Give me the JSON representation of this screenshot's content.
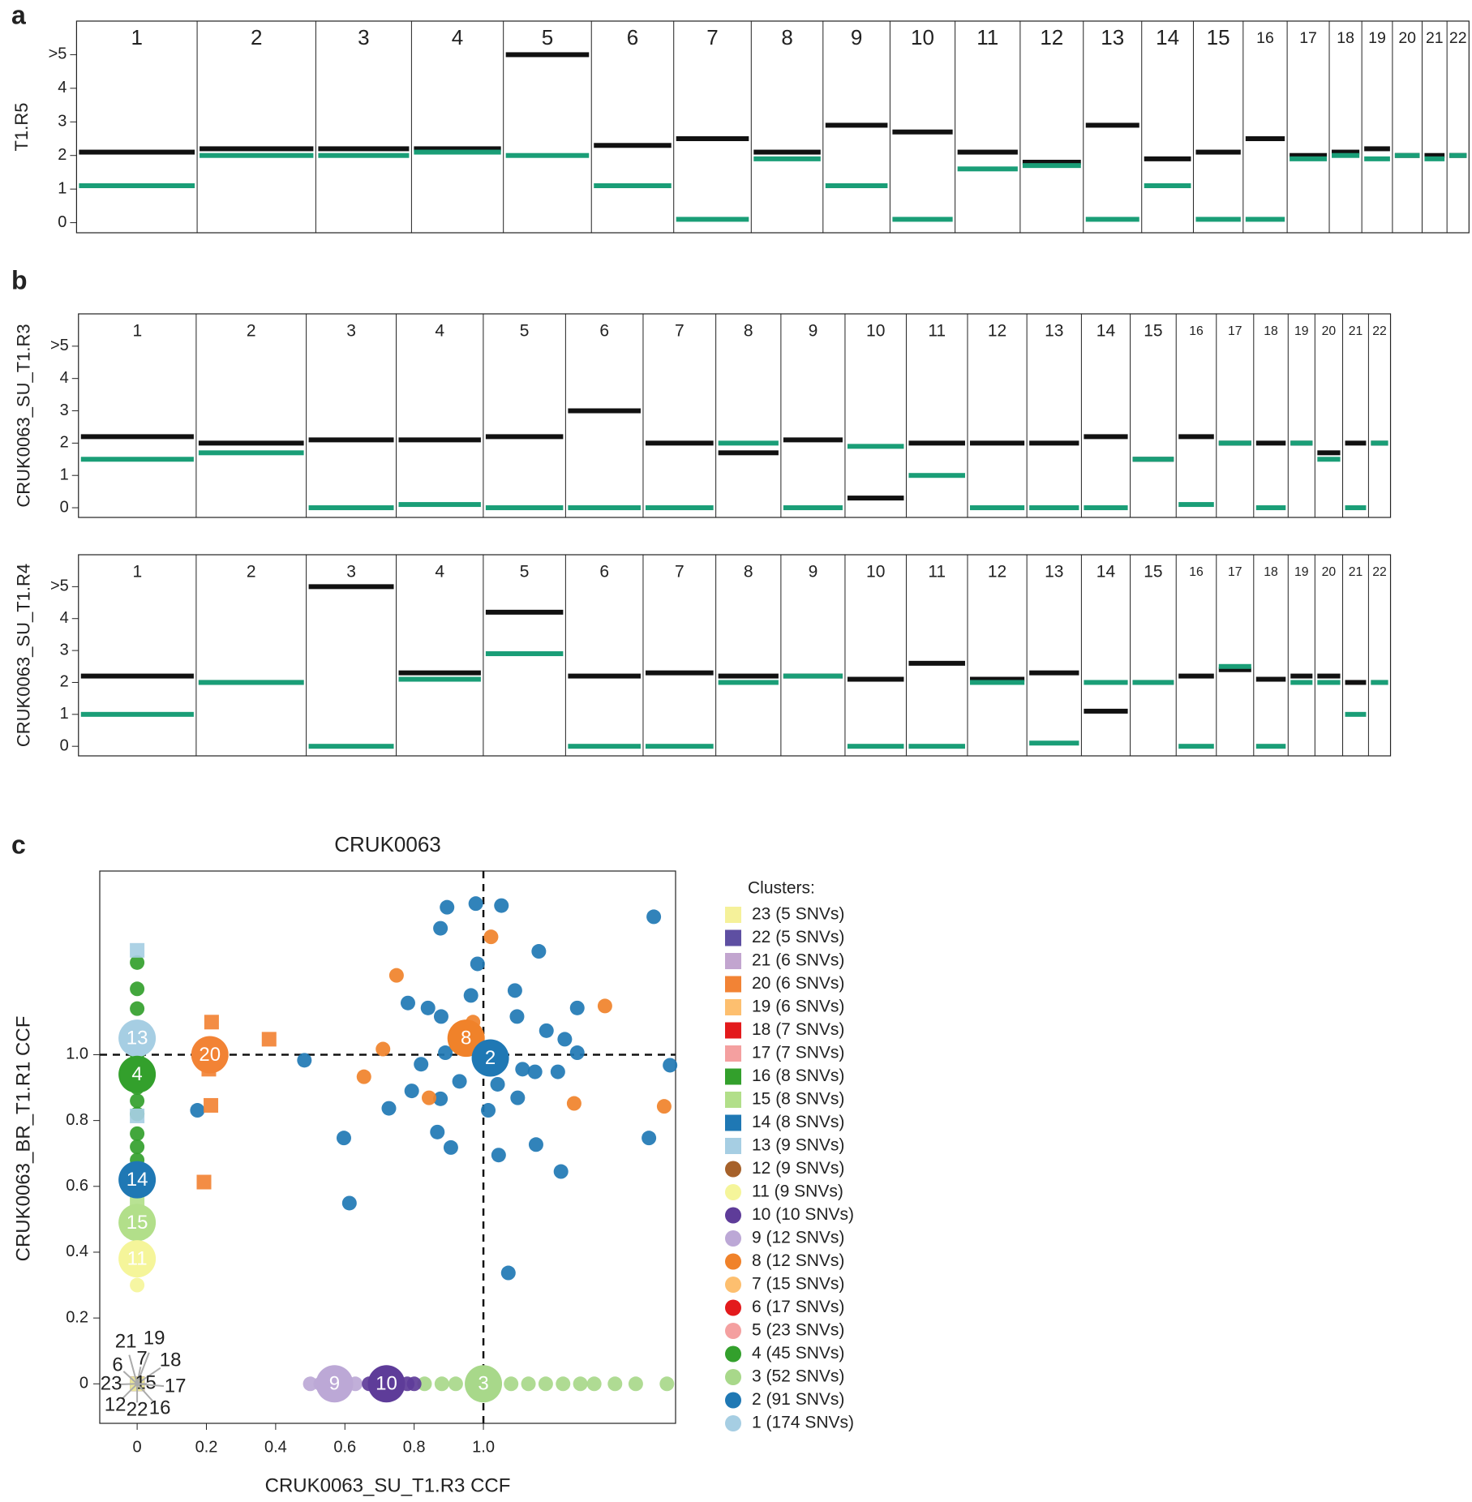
{
  "panel_labels": [
    "a",
    "b",
    "c"
  ],
  "chart_data": [
    {
      "type": "copynumber",
      "ylabel": "T1.R5",
      "categories": [
        "1",
        "2",
        "3",
        "4",
        "5",
        "6",
        "7",
        "8",
        "9",
        "10",
        "11",
        "12",
        "13",
        "14",
        "15",
        "16",
        "17",
        "18",
        "19",
        "20",
        "21",
        "22"
      ],
      "ylim": [
        -0.3,
        6.0
      ],
      "yticks": [
        0,
        1,
        2,
        3,
        4,
        {
          "value": 5,
          "label": ">5"
        }
      ],
      "series": [
        {
          "color": "#111111",
          "values": [
            2.1,
            2.2,
            2.2,
            2.2,
            5.0,
            2.3,
            2.5,
            2.1,
            2.9,
            2.7,
            2.1,
            1.8,
            2.9,
            1.9,
            2.1,
            2.5,
            2.0,
            2.1,
            2.2,
            2.0,
            2.0,
            2.0
          ]
        },
        {
          "color": "#1a9e77",
          "values": [
            1.1,
            2.0,
            2.0,
            2.1,
            2.0,
            1.1,
            0.1,
            1.9,
            1.1,
            0.1,
            1.6,
            1.7,
            0.1,
            1.1,
            0.1,
            0.1,
            1.9,
            2.0,
            1.9,
            2.0,
            1.9,
            2.0
          ]
        }
      ]
    },
    {
      "type": "copynumber",
      "ylabel": "CRUK0063_SU_T1.R3",
      "categories": [
        "1",
        "2",
        "3",
        "4",
        "5",
        "6",
        "7",
        "8",
        "9",
        "10",
        "11",
        "12",
        "13",
        "14",
        "15",
        "16",
        "17",
        "18",
        "19",
        "20",
        "21",
        "22"
      ],
      "ylim": [
        -0.3,
        6.0
      ],
      "yticks": [
        0,
        1,
        2,
        3,
        4,
        {
          "value": 5,
          "label": ">5"
        }
      ],
      "series": [
        {
          "color": "#111111",
          "values": [
            2.2,
            2.0,
            2.1,
            2.1,
            2.2,
            3.0,
            2.0,
            1.7,
            2.1,
            0.3,
            2.0,
            2.0,
            2.0,
            2.2,
            1.5,
            2.2,
            2.0,
            2.0,
            2.0,
            1.7,
            2.0,
            2.0
          ]
        },
        {
          "color": "#1a9e77",
          "values": [
            1.5,
            1.7,
            0.0,
            0.1,
            0.0,
            0.0,
            0.0,
            2.0,
            0.0,
            1.9,
            1.0,
            0.0,
            0.0,
            0.0,
            1.5,
            0.1,
            2.0,
            0.0,
            2.0,
            1.5,
            0.0,
            2.0
          ]
        }
      ]
    },
    {
      "type": "copynumber",
      "ylabel": "CRUK0063_SU_T1.R4",
      "categories": [
        "1",
        "2",
        "3",
        "4",
        "5",
        "6",
        "7",
        "8",
        "9",
        "10",
        "11",
        "12",
        "13",
        "14",
        "15",
        "16",
        "17",
        "18",
        "19",
        "20",
        "21",
        "22"
      ],
      "ylim": [
        -0.3,
        6.0
      ],
      "yticks": [
        0,
        1,
        2,
        3,
        4,
        {
          "value": 5,
          "label": ">5"
        }
      ],
      "series": [
        {
          "color": "#111111",
          "values": [
            2.2,
            2.0,
            5.0,
            2.3,
            4.2,
            2.2,
            2.3,
            2.2,
            2.2,
            2.1,
            2.6,
            2.1,
            2.3,
            1.1,
            2.0,
            2.2,
            2.4,
            2.1,
            2.2,
            2.2,
            2.0,
            2.0
          ]
        },
        {
          "color": "#1a9e77",
          "values": [
            1.0,
            2.0,
            0.0,
            2.1,
            2.9,
            0.0,
            0.0,
            2.0,
            2.2,
            0.0,
            0.0,
            2.0,
            0.1,
            2.0,
            2.0,
            0.0,
            2.5,
            0.0,
            2.0,
            2.0,
            1.0,
            2.0
          ]
        }
      ]
    },
    {
      "type": "scatter",
      "title": "CRUK0063",
      "xlabel": "CRUK0063_SU_T1.R3 CCF",
      "ylabel": "CRUK0063_BR_T1.R1 CCF",
      "xlim": [
        -0.108,
        1.555
      ],
      "ylim": [
        -0.12,
        1.558
      ],
      "xticks": [
        0,
        0.2,
        0.4,
        0.6,
        0.8,
        {
          "value": 1,
          "label": "1.0"
        }
      ],
      "yticks": [
        0,
        0.2,
        0.4,
        0.6,
        0.8,
        {
          "value": 1,
          "label": "1.0"
        }
      ],
      "vlines": [
        1
      ],
      "hlines": [
        1
      ],
      "legend_title": "Clusters:",
      "series": [
        {
          "name": "23 (5 SNVs)",
          "color": "#f5f19a",
          "marker": "square",
          "x": [
            0
          ],
          "y": [
            0
          ]
        },
        {
          "name": "22 (5 SNVs)",
          "color": "#5e4fa2",
          "marker": "square",
          "x": [
            0
          ],
          "y": [
            0
          ]
        },
        {
          "name": "21 (6 SNVs)",
          "color": "#c2a5cf",
          "marker": "square",
          "x": [
            0
          ],
          "y": [
            0
          ]
        },
        {
          "name": "20 (6 SNVs)",
          "color": "#f28335",
          "marker": "square",
          "x": [
            0.215,
            0.381,
            0.207,
            0.213,
            0.193
          ],
          "y": [
            1.099,
            1.047,
            0.956,
            0.846,
            0.613
          ]
        },
        {
          "name": "19 (6 SNVs)",
          "color": "#fdbf6f",
          "marker": "square",
          "x": [
            0
          ],
          "y": [
            0
          ]
        },
        {
          "name": "18 (7 SNVs)",
          "color": "#e31a1c",
          "marker": "square",
          "x": [
            0
          ],
          "y": [
            0
          ]
        },
        {
          "name": "17 (7 SNVs)",
          "color": "#f4a0a0",
          "marker": "square",
          "x": [
            0
          ],
          "y": [
            0
          ]
        },
        {
          "name": "16 (8 SNVs)",
          "color": "#33a02c",
          "marker": "square",
          "x": [
            0
          ],
          "y": [
            0
          ]
        },
        {
          "name": "15 (8 SNVs)",
          "color": "#b2df8a",
          "marker": "square",
          "x": [
            0,
            0,
            0
          ],
          "y": [
            0.55,
            0.5,
            0.46
          ]
        },
        {
          "name": "14 (8 SNVs)",
          "color": "#1f78b4",
          "marker": "square",
          "x": [
            0
          ],
          "y": [
            0.62
          ]
        },
        {
          "name": "13 (9 SNVs)",
          "color": "#a6cee3",
          "marker": "square",
          "x": [
            0,
            0
          ],
          "y": [
            1.317,
            0.814
          ]
        },
        {
          "name": "12 (9 SNVs)",
          "color": "#a6612a",
          "marker": "circle",
          "x": [
            0
          ],
          "y": [
            0
          ]
        },
        {
          "name": "11 (9 SNVs)",
          "color": "#f5f59a",
          "marker": "circle",
          "x": [
            0,
            0,
            0
          ],
          "y": [
            0.4,
            0.35,
            0.3
          ]
        },
        {
          "name": "10 (10 SNVs)",
          "color": "#5e3c99",
          "marker": "circle",
          "x": [
            0.67,
            0.78,
            0.8
          ],
          "y": [
            0,
            0,
            0
          ]
        },
        {
          "name": "9 (12 SNVs)",
          "color": "#bca8d6",
          "marker": "circle",
          "x": [
            0.5,
            0.53,
            0.6,
            0.63
          ],
          "y": [
            0,
            0,
            0,
            0
          ]
        },
        {
          "name": "8 (12 SNVs)",
          "color": "#f0822a",
          "marker": "circle",
          "x": [
            1.022,
            0.749,
            1.351,
            0.71,
            0.655,
            0.843,
            1.262,
            1.522,
            0.97
          ],
          "y": [
            1.358,
            1.241,
            1.148,
            1.017,
            0.933,
            0.869,
            0.852,
            0.843,
            1.099
          ]
        },
        {
          "name": "7 (15 SNVs)",
          "color": "#fdbf6f",
          "marker": "circle",
          "x": [
            0
          ],
          "y": [
            0
          ]
        },
        {
          "name": "6 (17 SNVs)",
          "color": "#e31a1c",
          "marker": "circle",
          "x": [
            0
          ],
          "y": [
            0
          ]
        },
        {
          "name": "5 (23 SNVs)",
          "color": "#f4a0a0",
          "marker": "circle",
          "x": [
            0
          ],
          "y": [
            0
          ]
        },
        {
          "name": "4 (45 SNVs)",
          "color": "#33a02c",
          "marker": "circle",
          "x": [
            0,
            0,
            0,
            0,
            0,
            0,
            0,
            0,
            0,
            0,
            0,
            0
          ],
          "y": [
            1.28,
            1.2,
            1.14,
            1.08,
            1.0,
            0.9,
            0.86,
            0.82,
            0.76,
            0.72,
            0.68,
            0.64
          ]
        },
        {
          "name": "3 (52 SNVs)",
          "color": "#a8d88a",
          "marker": "circle",
          "x": [
            0.83,
            0.88,
            0.92,
            0.97,
            1.03,
            1.08,
            1.13,
            1.18,
            1.23,
            1.28,
            1.32,
            1.38,
            1.44,
            1.53
          ],
          "y": [
            0,
            0,
            0,
            0,
            0,
            0,
            0,
            0,
            0,
            0,
            0,
            0,
            0,
            0
          ]
        },
        {
          "name": "2 (91 SNVs)",
          "color": "#1f78b4",
          "marker": "circle",
          "x": [
            0.895,
            0.978,
            1.052,
            1.492,
            0.876,
            1.16,
            0.983,
            1.091,
            0.782,
            0.84,
            0.878,
            0.964,
            1.097,
            1.271,
            1.182,
            1.235,
            0.89,
            1.271,
            0.483,
            0.82,
            1.539,
            1.113,
            1.149,
            0.793,
            0.931,
            1.041,
            1.099,
            0.876,
            0.727,
            1.014,
            1.215,
            0.867,
            0.597,
            0.906,
            1.044,
            1.152,
            1.478,
            1.224,
            0.613,
            1.072,
            0.174
          ],
          "y": [
            1.448,
            1.459,
            1.453,
            1.419,
            1.384,
            1.314,
            1.276,
            1.195,
            1.157,
            1.142,
            1.116,
            1.18,
            1.116,
            1.142,
            1.073,
            1.047,
            1.006,
            1.006,
            0.983,
            0.971,
            0.968,
            0.956,
            0.948,
            0.89,
            0.919,
            0.91,
            0.869,
            0.866,
            0.837,
            0.831,
            0.948,
            0.765,
            0.747,
            0.718,
            0.695,
            0.727,
            0.747,
            0.645,
            0.549,
            0.337,
            0.831
          ]
        },
        {
          "name": "1 (174 SNVs)",
          "color": "#a6cee3",
          "marker": "circle",
          "x": [
            0
          ],
          "y": [
            0
          ]
        }
      ],
      "cluster_labels": [
        {
          "label": "13",
          "x": 0,
          "y": 1.05,
          "color": "#a6cee3"
        },
        {
          "label": "20",
          "x": 0.21,
          "y": 1.0,
          "color": "#f28335"
        },
        {
          "label": "4",
          "x": 0,
          "y": 0.94,
          "color": "#33a02c"
        },
        {
          "label": "14",
          "x": 0,
          "y": 0.62,
          "color": "#1f78b4"
        },
        {
          "label": "15",
          "x": 0,
          "y": 0.49,
          "color": "#b2df8a"
        },
        {
          "label": "11",
          "x": 0,
          "y": 0.38,
          "color": "#f5f59a"
        },
        {
          "label": "8",
          "x": 0.95,
          "y": 1.05,
          "color": "#f0822a"
        },
        {
          "label": "2",
          "x": 1.02,
          "y": 0.99,
          "color": "#1f78b4"
        },
        {
          "label": "9",
          "x": 0.57,
          "y": 0,
          "color": "#bca8d6"
        },
        {
          "label": "10",
          "x": 0.72,
          "y": 0,
          "color": "#5e3c99"
        },
        {
          "label": "3",
          "x": 1.0,
          "y": 0,
          "color": "#a8d88a"
        }
      ],
      "origin_labels": [
        "21",
        "19",
        "6",
        "7",
        "18",
        "23",
        "1",
        "5",
        "17",
        "12",
        "22",
        "16"
      ]
    }
  ]
}
